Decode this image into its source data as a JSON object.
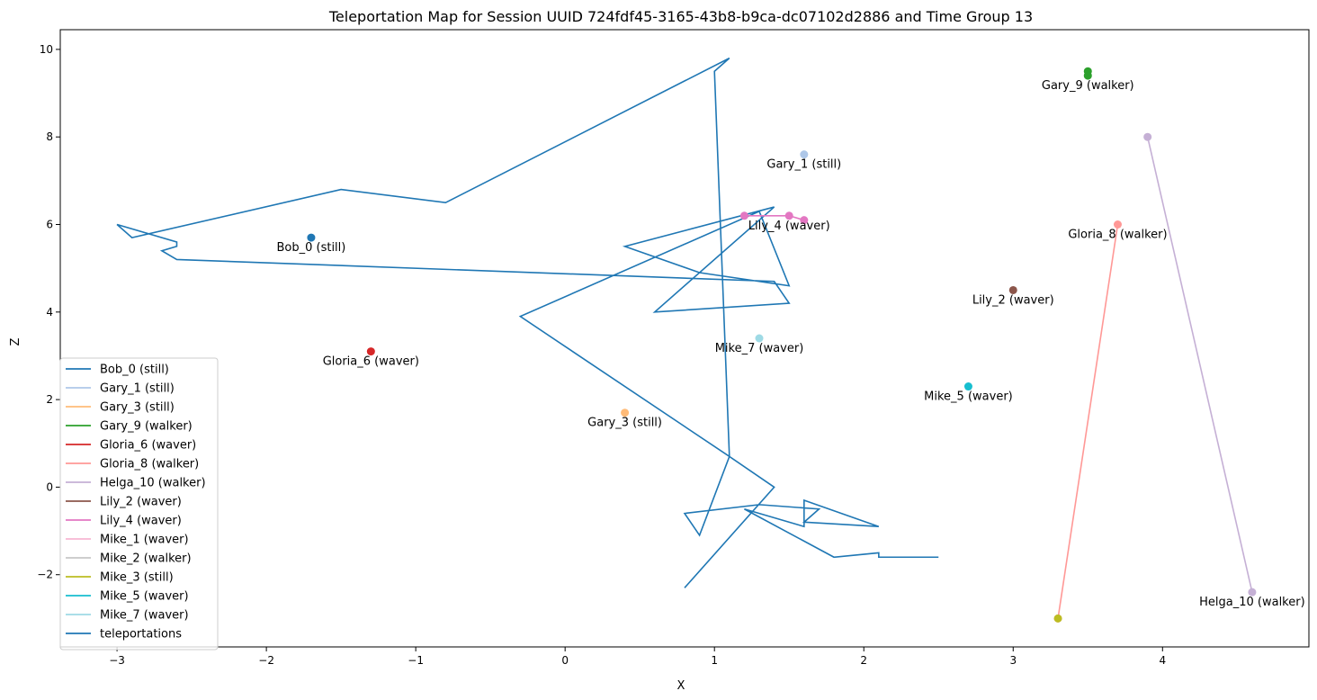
{
  "chart_data": {
    "type": "scatter",
    "title": "Teleportation Map for Session UUID 724fdf45-3165-43b8-b9ca-dc07102d2886 and Time Group 13",
    "xlabel": "X",
    "ylabel": "Z",
    "xlim": [
      -3.38,
      4.98
    ],
    "ylim": [
      -3.65,
      10.45
    ],
    "xticks": [
      -3,
      -2,
      -1,
      0,
      1,
      2,
      3,
      4
    ],
    "yticks": [
      -2,
      0,
      2,
      4,
      6,
      8,
      10
    ],
    "grid": false,
    "legend_position": "lower-left",
    "series": [
      {
        "name": "Bob_0 (still)",
        "color": "#1f77b4",
        "points": [
          [
            -1.7,
            5.7
          ]
        ],
        "label": "Bob_0 (still)",
        "label_at": [
          -1.7,
          5.7
        ]
      },
      {
        "name": "Gary_1 (still)",
        "color": "#aec7e8",
        "points": [
          [
            1.6,
            7.6
          ]
        ],
        "label": "Gary_1 (still)",
        "label_at": [
          1.6,
          7.6
        ]
      },
      {
        "name": "Gary_3 (still)",
        "color": "#ffbb78",
        "points": [
          [
            0.4,
            1.7
          ]
        ],
        "label": "Gary_3 (still)",
        "label_at": [
          0.4,
          1.7
        ]
      },
      {
        "name": "Gary_9 (walker)",
        "color": "#2ca02c",
        "points": [
          [
            3.5,
            9.5
          ],
          [
            3.5,
            9.4
          ]
        ],
        "label": "Gary_9 (walker)",
        "label_at": [
          3.5,
          9.4
        ]
      },
      {
        "name": "Gloria_6 (waver)",
        "color": "#d62728",
        "points": [
          [
            -1.3,
            3.1
          ]
        ],
        "label": "Gloria_6 (waver)",
        "label_at": [
          -1.3,
          3.1
        ]
      },
      {
        "name": "Gloria_8 (walker)",
        "color": "#ff9896",
        "points": [
          [
            3.7,
            6.0
          ],
          [
            3.3,
            -3.0
          ]
        ],
        "label": "Gloria_8 (walker)",
        "label_at": [
          3.7,
          6.0
        ]
      },
      {
        "name": "Helga_10 (walker)",
        "color": "#c5b0d5",
        "points": [
          [
            3.9,
            8.0
          ],
          [
            4.6,
            -2.4
          ]
        ],
        "label": "Helga_10 (walker)",
        "label_at": [
          4.6,
          -2.4
        ]
      },
      {
        "name": "Lily_2 (waver)",
        "color": "#8c564b",
        "points": [
          [
            3.0,
            4.5
          ]
        ],
        "label": "Lily_2 (waver)",
        "label_at": [
          3.0,
          4.5
        ]
      },
      {
        "name": "Lily_4 (waver)",
        "color": "#e377c2",
        "points": [
          [
            1.2,
            6.2
          ],
          [
            1.5,
            6.2
          ],
          [
            1.6,
            6.1
          ]
        ],
        "label": "Lily_4 (waver)",
        "label_at": [
          1.5,
          6.2
        ]
      },
      {
        "name": "Mike_1 (waver)",
        "color": "#f7b6d2",
        "points": [],
        "label": "",
        "label_at": null
      },
      {
        "name": "Mike_2 (walker)",
        "color": "#c7c7c7",
        "points": [],
        "label": "",
        "label_at": null
      },
      {
        "name": "Mike_3 (still)",
        "color": "#bcbd22",
        "points": [
          [
            3.3,
            -3.0
          ]
        ],
        "label": "",
        "label_at": null
      },
      {
        "name": "Mike_5 (waver)",
        "color": "#17becf",
        "points": [
          [
            2.7,
            2.3
          ]
        ],
        "label": "Mike_5 (waver)",
        "label_at": [
          2.7,
          2.3
        ]
      },
      {
        "name": "Mike_7 (waver)",
        "color": "#9edae5",
        "points": [
          [
            1.3,
            3.4
          ]
        ],
        "label": "Mike_7 (waver)",
        "label_at": [
          1.3,
          3.4
        ]
      }
    ],
    "teleportations": {
      "name": "teleportations",
      "color": "#1f77b4",
      "path": [
        [
          0.8,
          -2.3
        ],
        [
          1.4,
          0.0
        ],
        [
          1.1,
          0.7
        ],
        [
          1.0,
          9.5
        ],
        [
          1.1,
          9.8
        ],
        [
          -0.8,
          6.5
        ],
        [
          -1.5,
          6.8
        ],
        [
          -2.9,
          5.7
        ],
        [
          -3.0,
          6.0
        ],
        [
          -2.6,
          5.6
        ],
        [
          -2.6,
          5.5
        ],
        [
          -2.7,
          5.4
        ],
        [
          -2.6,
          5.2
        ],
        [
          1.4,
          4.7
        ],
        [
          1.5,
          4.2
        ],
        [
          0.6,
          4.0
        ],
        [
          1.4,
          6.4
        ],
        [
          0.4,
          5.5
        ],
        [
          0.9,
          4.9
        ],
        [
          1.5,
          4.6
        ],
        [
          1.3,
          6.3
        ],
        [
          -0.3,
          3.9
        ],
        [
          1.1,
          0.7
        ],
        [
          0.9,
          -1.1
        ],
        [
          0.8,
          -0.6
        ],
        [
          1.3,
          -0.4
        ],
        [
          1.7,
          -0.5
        ],
        [
          1.6,
          -0.8
        ],
        [
          2.1,
          -0.9
        ],
        [
          1.6,
          -0.3
        ],
        [
          1.6,
          -0.9
        ],
        [
          1.2,
          -0.5
        ],
        [
          1.8,
          -1.6
        ],
        [
          2.1,
          -1.5
        ],
        [
          2.1,
          -1.6
        ],
        [
          2.5,
          -1.6
        ]
      ]
    }
  }
}
